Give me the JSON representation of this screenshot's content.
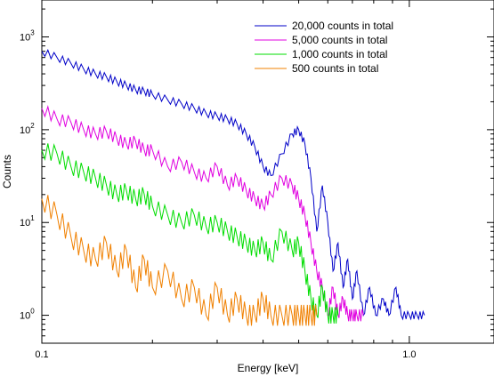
{
  "chart_data": {
    "type": "line",
    "xscale": "log",
    "yscale": "log",
    "xlim": [
      0.1,
      1.7
    ],
    "ylim": [
      0.5,
      2500
    ],
    "xlabel": "Energy [keV]",
    "ylabel": "Counts",
    "x_ticks": [
      {
        "value": 0.1,
        "label": "0.1"
      },
      {
        "value": 1.0,
        "label": "1.0"
      }
    ],
    "y_ticks": [
      {
        "value": 1,
        "base": "10",
        "exp": "0"
      },
      {
        "value": 10,
        "base": "10",
        "exp": "1"
      },
      {
        "value": 100,
        "base": "10",
        "exp": "2"
      },
      {
        "value": 1000,
        "base": "10",
        "exp": "3"
      }
    ],
    "legend_position": "top-right",
    "series": [
      {
        "name": "20,000 counts in total",
        "color": "#0000c8",
        "x": [
          0.1,
          0.11,
          0.12,
          0.13,
          0.14,
          0.15,
          0.16,
          0.17,
          0.18,
          0.19,
          0.2,
          0.22,
          0.24,
          0.26,
          0.28,
          0.3,
          0.32,
          0.34,
          0.36,
          0.38,
          0.4,
          0.42,
          0.45,
          0.48,
          0.5,
          0.52,
          0.54,
          0.56,
          0.58,
          0.6,
          0.62,
          0.64,
          0.66,
          0.68,
          0.7,
          0.72,
          0.75,
          0.78,
          0.81,
          0.85,
          0.88,
          0.92,
          0.95,
          1.0,
          1.05,
          1.1
        ],
        "y": [
          700,
          600,
          520,
          450,
          400,
          370,
          330,
          300,
          270,
          260,
          240,
          210,
          190,
          170,
          150,
          140,
          130,
          115,
          90,
          65,
          40,
          32,
          55,
          90,
          100,
          70,
          30,
          8,
          25,
          10,
          3,
          6,
          2,
          4,
          1.5,
          3,
          1,
          2,
          1,
          1.5,
          1,
          2,
          1,
          1,
          1,
          1
        ]
      },
      {
        "name": "5,000 counts in total",
        "color": "#e000e0",
        "x": [
          0.1,
          0.11,
          0.12,
          0.13,
          0.14,
          0.15,
          0.16,
          0.17,
          0.18,
          0.19,
          0.2,
          0.22,
          0.24,
          0.26,
          0.28,
          0.3,
          0.32,
          0.34,
          0.36,
          0.38,
          0.4,
          0.42,
          0.45,
          0.48,
          0.5,
          0.52,
          0.54,
          0.56,
          0.58,
          0.6,
          0.62,
          0.64,
          0.66,
          0.68,
          0.7,
          0.72,
          0.75
        ],
        "y": [
          170,
          130,
          120,
          100,
          90,
          95,
          80,
          70,
          75,
          60,
          60,
          40,
          45,
          35,
          30,
          40,
          25,
          30,
          22,
          18,
          15,
          20,
          30,
          25,
          18,
          12,
          6,
          3,
          2,
          1,
          2,
          1,
          1.5,
          1,
          1,
          1,
          1
        ]
      },
      {
        "name": "1,000 counts in total",
        "color": "#00dd00",
        "x": [
          0.1,
          0.11,
          0.12,
          0.13,
          0.14,
          0.15,
          0.16,
          0.17,
          0.18,
          0.19,
          0.2,
          0.22,
          0.24,
          0.26,
          0.28,
          0.3,
          0.32,
          0.34,
          0.36,
          0.38,
          0.4,
          0.42,
          0.45,
          0.48,
          0.5,
          0.52,
          0.54,
          0.56,
          0.58,
          0.6,
          0.62,
          0.64
        ],
        "y": [
          60,
          55,
          40,
          35,
          30,
          25,
          20,
          22,
          18,
          20,
          15,
          12,
          10,
          12,
          9,
          10,
          8,
          7,
          6,
          5,
          6,
          4,
          8,
          5,
          6,
          3,
          1.5,
          1,
          2,
          1,
          1,
          1
        ]
      },
      {
        "name": "500 counts in total",
        "color": "#f08000",
        "x": [
          0.1,
          0.11,
          0.12,
          0.13,
          0.14,
          0.15,
          0.16,
          0.17,
          0.18,
          0.19,
          0.2,
          0.22,
          0.24,
          0.26,
          0.28,
          0.3,
          0.32,
          0.34,
          0.36,
          0.38,
          0.4,
          0.42,
          0.45,
          0.48,
          0.5,
          0.52,
          0.54,
          0.56
        ],
        "y": [
          18,
          12,
          7,
          5,
          4,
          6,
          3,
          5,
          2,
          4,
          2,
          3,
          1.5,
          2,
          1,
          2,
          1,
          1.5,
          1,
          1,
          1.5,
          1,
          1,
          1,
          1,
          1,
          1,
          1
        ]
      }
    ]
  }
}
